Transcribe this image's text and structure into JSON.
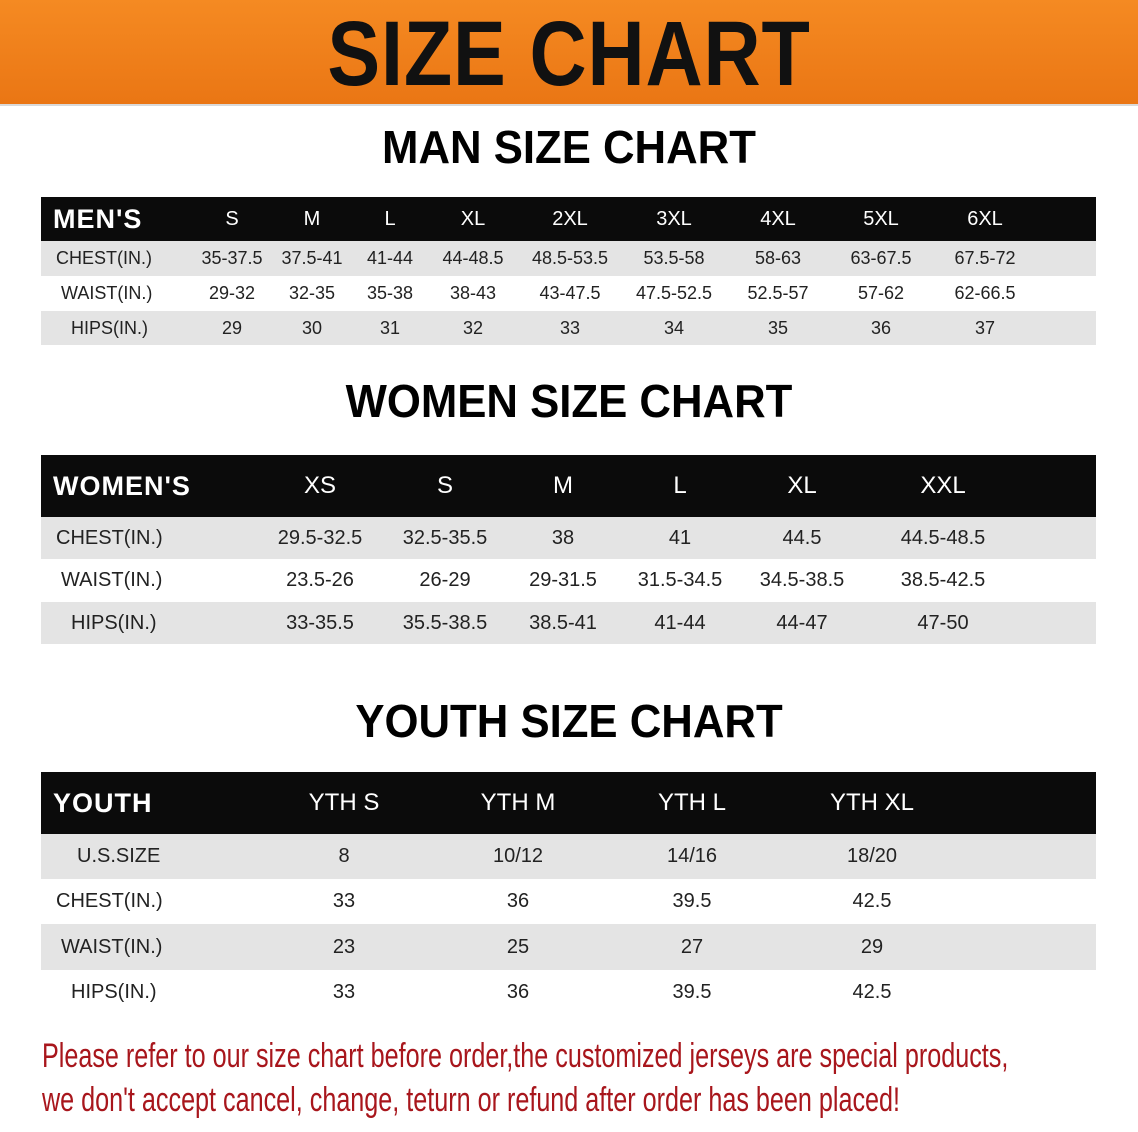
{
  "banner_title": "SIZE CHART",
  "colors": {
    "banner": "#f08020",
    "header_row": "#0b0b0b",
    "note_text": "#a8161c",
    "stripe": "#e4e4e4"
  },
  "men": {
    "title": "MAN SIZE CHART",
    "header": [
      "MEN'S",
      "S",
      "M",
      "L",
      "XL",
      "2XL",
      "3XL",
      "4XL",
      "5XL",
      "6XL"
    ],
    "rows": [
      [
        "CHEST(IN.)",
        "35-37.5",
        "37.5-41",
        "41-44",
        "44-48.5",
        "48.5-53.5",
        "53.5-58",
        "58-63",
        "63-67.5",
        "67.5-72"
      ],
      [
        "WAIST(IN.)",
        "29-32",
        "32-35",
        "35-38",
        "38-43",
        "43-47.5",
        "47.5-52.5",
        "52.5-57",
        "57-62",
        "62-66.5"
      ],
      [
        "HIPS(IN.)",
        "29",
        "30",
        "31",
        "32",
        "33",
        "34",
        "35",
        "36",
        "37"
      ]
    ]
  },
  "women": {
    "title": "WOMEN SIZE CHART",
    "header": [
      "WOMEN'S",
      "XS",
      "S",
      "M",
      "L",
      "XL",
      "XXL"
    ],
    "rows": [
      [
        "CHEST(IN.)",
        "29.5-32.5",
        "32.5-35.5",
        "38",
        "41",
        "44.5",
        "44.5-48.5"
      ],
      [
        "WAIST(IN.)",
        "23.5-26",
        "26-29",
        "29-31.5",
        "31.5-34.5",
        "34.5-38.5",
        "38.5-42.5"
      ],
      [
        "HIPS(IN.)",
        "33-35.5",
        "35.5-38.5",
        "38.5-41",
        "41-44",
        "44-47",
        "47-50"
      ]
    ]
  },
  "youth": {
    "title": "YOUTH SIZE CHART",
    "header": [
      "YOUTH",
      "YTH S",
      "YTH M",
      "YTH L",
      "YTH XL"
    ],
    "rows": [
      [
        "U.S.SIZE",
        "8",
        "10/12",
        "14/16",
        "18/20"
      ],
      [
        "CHEST(IN.)",
        "33",
        "36",
        "39.5",
        "42.5"
      ],
      [
        "WAIST(IN.)",
        "23",
        "25",
        "27",
        "29"
      ],
      [
        "HIPS(IN.)",
        "33",
        "36",
        "39.5",
        "42.5"
      ]
    ]
  },
  "note": [
    "Please refer to our size chart before order,the customized jerseys are special products,",
    "we don't accept cancel, change, teturn or refund after order has been placed!"
  ]
}
